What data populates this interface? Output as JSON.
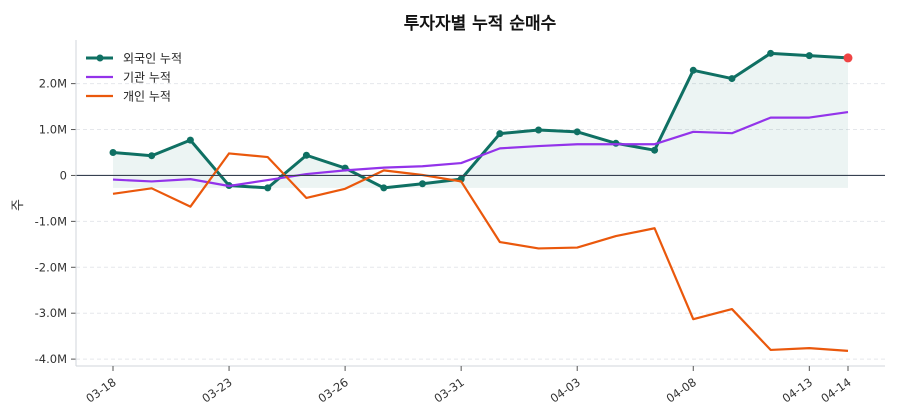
{
  "chart_data": {
    "type": "line",
    "title": "투자자별 누적 순매수",
    "xlabel": "",
    "ylabel": "주",
    "x": [
      "03-18",
      "03-19",
      "03-20",
      "03-23",
      "03-24",
      "03-25",
      "03-26",
      "03-27",
      "03-30",
      "03-31",
      "04-01",
      "04-02",
      "04-03",
      "04-06",
      "04-07",
      "04-08",
      "04-09",
      "04-10",
      "04-13",
      "04-14"
    ],
    "xticks": [
      "03-18",
      "03-23",
      "03-26",
      "03-31",
      "04-03",
      "04-08",
      "04-13",
      "04-14"
    ],
    "yticks": [
      2000000,
      1000000,
      0,
      -1000000,
      -2000000,
      -3000000,
      -4000000
    ],
    "ytick_labels": [
      "2.0M",
      "1.0M",
      "0",
      "-1.0M",
      "-2.0M",
      "-3.0M",
      "-4.0M"
    ],
    "ylim": [
      -4150000,
      2950000
    ],
    "grid": "horizontal dashed",
    "legend_position": "top-left",
    "series": [
      {
        "name": "외국인 누적",
        "color": "#0f7063",
        "markers": true,
        "fill": true,
        "values": [
          500000,
          430000,
          770000,
          -220000,
          -270000,
          440000,
          160000,
          -270000,
          -180000,
          -80000,
          910000,
          990000,
          950000,
          700000,
          550000,
          2290000,
          2110000,
          2660000,
          2610000,
          2560000
        ]
      },
      {
        "name": "기관 누적",
        "color": "#9333ea",
        "markers": false,
        "values": [
          -90000,
          -130000,
          -80000,
          -230000,
          -100000,
          30000,
          110000,
          170000,
          200000,
          270000,
          590000,
          640000,
          680000,
          680000,
          680000,
          950000,
          920000,
          1260000,
          1260000,
          1380000
        ]
      },
      {
        "name": "개인 누적",
        "color": "#ea580c",
        "markers": false,
        "values": [
          -400000,
          -280000,
          -680000,
          480000,
          400000,
          -490000,
          -290000,
          110000,
          10000,
          -130000,
          -1450000,
          -1590000,
          -1570000,
          -1320000,
          -1150000,
          -3130000,
          -2910000,
          -3800000,
          -3760000,
          -3820000
        ]
      }
    ],
    "last_point_color": "#ef4444",
    "zero_line_color": "#374151"
  }
}
